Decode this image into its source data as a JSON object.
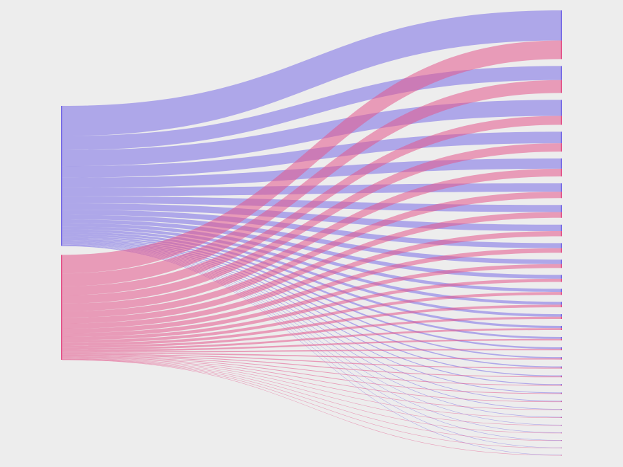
{
  "chart_data": {
    "type": "sankey",
    "series": [
      {
        "color": "#7a6ee6",
        "values": [
          47,
          22,
          25,
          18,
          16,
          13,
          11,
          10,
          8,
          7,
          6,
          5,
          4.5,
          4,
          3.5,
          3,
          2.5,
          2,
          1.8,
          1.5,
          1.3,
          1.1,
          1,
          0.9,
          0.8,
          0.7,
          0.6,
          0.5,
          0.4,
          0.3
        ]
      },
      {
        "color": "#e4578c",
        "values": [
          29,
          20,
          14,
          13,
          12,
          10,
          9,
          8,
          7,
          6,
          5,
          4.5,
          4,
          3.5,
          3,
          2.5,
          2,
          1.8,
          1.5,
          1.3,
          1.1,
          1,
          0.9,
          0.8,
          0.7,
          0.6,
          0.5,
          0.4,
          0.3,
          0.2
        ]
      }
    ]
  }
}
